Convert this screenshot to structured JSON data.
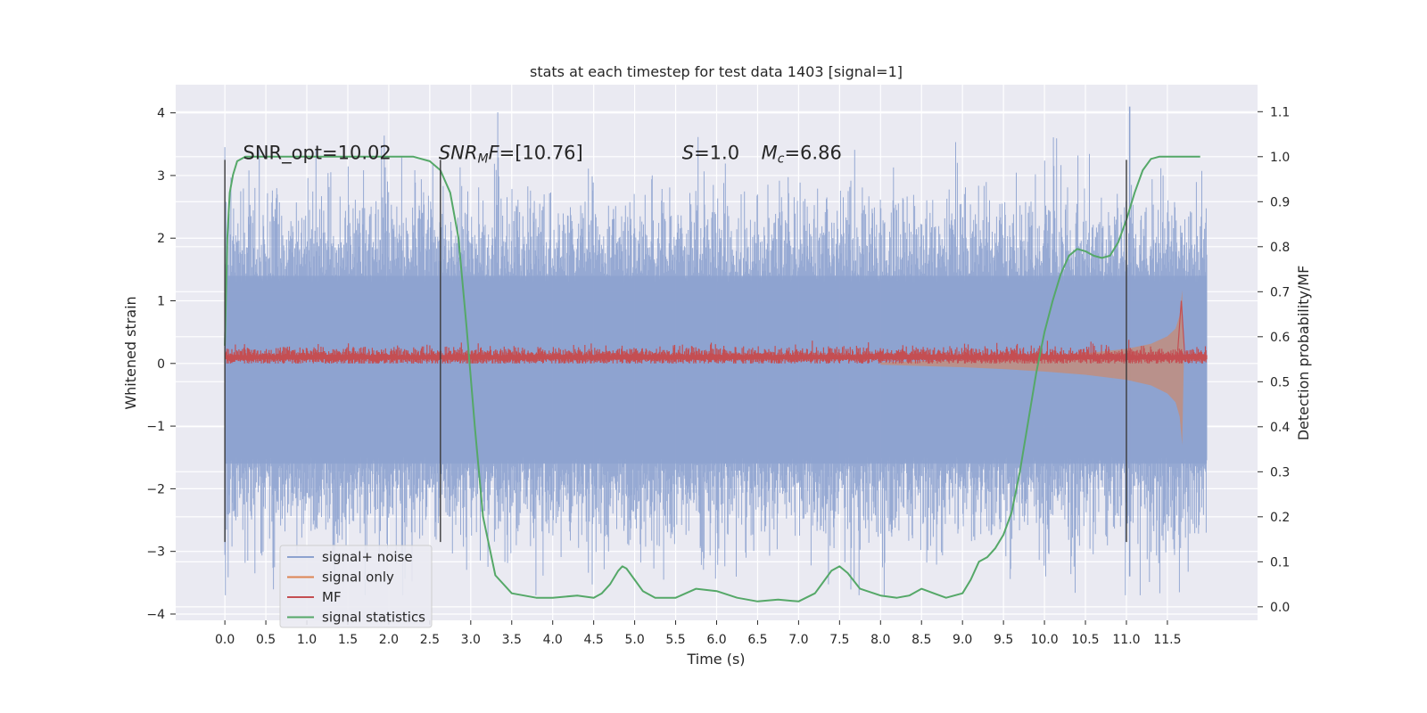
{
  "chart_data": {
    "type": "line",
    "title": "stats at each timestep for test data 1403 [signal=1]",
    "xlabel": "Time (s)",
    "ylabel": "Whitened strain",
    "y2label": "Detection probability/MF",
    "xlim": [
      -0.6,
      12.6
    ],
    "ylim": [
      -4.1,
      4.45
    ],
    "y2lim": [
      -0.03,
      1.16
    ],
    "x_ticks": [
      0.0,
      0.5,
      1.0,
      1.5,
      2.0,
      2.5,
      3.0,
      3.5,
      4.0,
      4.5,
      5.0,
      5.5,
      6.0,
      6.5,
      7.0,
      7.5,
      8.0,
      8.5,
      9.0,
      9.5,
      10.0,
      10.5,
      11.0,
      11.5
    ],
    "x_tick_labels": [
      "0.0",
      "0.5",
      "1.0",
      "1.5",
      "2.0",
      "2.5",
      "3.0",
      "3.5",
      "4.0",
      "4.5",
      "5.0",
      "5.5",
      "6.0",
      "6.5",
      "7.0",
      "7.5",
      "8.0",
      "8.5",
      "9.0",
      "9.5",
      "10.0",
      "10.5",
      "11.0",
      "11.5"
    ],
    "y_ticks": [
      -4,
      -3,
      -2,
      -1,
      0,
      1,
      2,
      3,
      4
    ],
    "y_tick_labels": [
      "−4",
      "−3",
      "−2",
      "−1",
      "0",
      "1",
      "2",
      "3",
      "4"
    ],
    "y2_ticks": [
      0.0,
      0.1,
      0.2,
      0.3,
      0.4,
      0.5,
      0.6,
      0.7,
      0.8,
      0.9,
      1.0,
      1.1
    ],
    "y2_tick_labels": [
      "0.0",
      "0.1",
      "0.2",
      "0.3",
      "0.4",
      "0.5",
      "0.6",
      "0.7",
      "0.8",
      "0.9",
      "1.0",
      "1.1"
    ],
    "grid": true,
    "legend_position": "lower-left",
    "vlines": [
      0.0,
      2.63,
      11.0
    ],
    "vline_range": [
      -2.85,
      3.25
    ],
    "annotations": [
      {
        "text": "SNR_opt=10.02",
        "x": 0.2
      },
      {
        "text": "SNRMF=[10.76]",
        "x": 2.63
      },
      {
        "text": "S=1.0",
        "x": 5.6
      },
      {
        "text": "Mc=6.86",
        "x": 6.6
      }
    ],
    "series": [
      {
        "name": "signal+ noise",
        "color": "#8da2cf",
        "axis": "left",
        "kind": "noise band",
        "x_range": [
          0.0,
          11.98
        ],
        "core_range": [
          -1.6,
          1.4
        ],
        "max_value": 4.1,
        "min_value": -3.7
      },
      {
        "name": "signal only",
        "color": "#dd8452",
        "axis": "left",
        "kind": "chirp envelope",
        "x": [
          8.0,
          9.0,
          9.5,
          10.0,
          10.5,
          11.0,
          11.3,
          11.5,
          11.6,
          11.65,
          11.68,
          11.7
        ],
        "envelope": [
          0.02,
          0.06,
          0.09,
          0.13,
          0.18,
          0.26,
          0.35,
          0.48,
          0.62,
          0.85,
          1.3,
          0.0
        ]
      },
      {
        "name": "MF",
        "color": "#c44e52",
        "axis": "left",
        "kind": "noise trace",
        "x_range": [
          0.0,
          11.98
        ],
        "level": 0.1,
        "spread": [
          0.0,
          0.4
        ],
        "peak": {
          "x": 11.67,
          "y": 1.0
        }
      },
      {
        "name": "signal statistics",
        "color": "#55a868",
        "axis": "right",
        "x": [
          0.0,
          0.03,
          0.06,
          0.1,
          0.15,
          0.25,
          0.5,
          1.0,
          1.5,
          2.0,
          2.3,
          2.5,
          2.63,
          2.75,
          2.85,
          2.95,
          3.05,
          3.15,
          3.3,
          3.5,
          3.8,
          4.0,
          4.3,
          4.5,
          4.6,
          4.7,
          4.8,
          4.85,
          4.9,
          5.0,
          5.1,
          5.25,
          5.5,
          5.75,
          6.0,
          6.25,
          6.5,
          6.75,
          7.0,
          7.2,
          7.3,
          7.4,
          7.5,
          7.6,
          7.75,
          8.0,
          8.2,
          8.35,
          8.5,
          8.65,
          8.8,
          9.0,
          9.1,
          9.2,
          9.3,
          9.4,
          9.5,
          9.6,
          9.7,
          9.8,
          9.9,
          10.0,
          10.1,
          10.2,
          10.3,
          10.4,
          10.5,
          10.6,
          10.7,
          10.8,
          10.9,
          11.0,
          11.1,
          11.2,
          11.3,
          11.4,
          11.6,
          11.9
        ],
        "y": [
          0.58,
          0.82,
          0.92,
          0.96,
          0.99,
          1.0,
          1.0,
          1.0,
          1.0,
          1.0,
          1.0,
          0.99,
          0.97,
          0.92,
          0.82,
          0.62,
          0.4,
          0.2,
          0.07,
          0.03,
          0.02,
          0.02,
          0.025,
          0.02,
          0.03,
          0.05,
          0.08,
          0.09,
          0.085,
          0.06,
          0.035,
          0.02,
          0.02,
          0.04,
          0.035,
          0.02,
          0.012,
          0.016,
          0.012,
          0.03,
          0.055,
          0.08,
          0.09,
          0.075,
          0.04,
          0.025,
          0.02,
          0.025,
          0.04,
          0.03,
          0.02,
          0.03,
          0.06,
          0.1,
          0.11,
          0.13,
          0.16,
          0.21,
          0.3,
          0.41,
          0.52,
          0.61,
          0.68,
          0.74,
          0.78,
          0.795,
          0.79,
          0.78,
          0.775,
          0.78,
          0.81,
          0.86,
          0.92,
          0.97,
          0.995,
          1.0,
          1.0,
          1.0
        ]
      }
    ]
  }
}
